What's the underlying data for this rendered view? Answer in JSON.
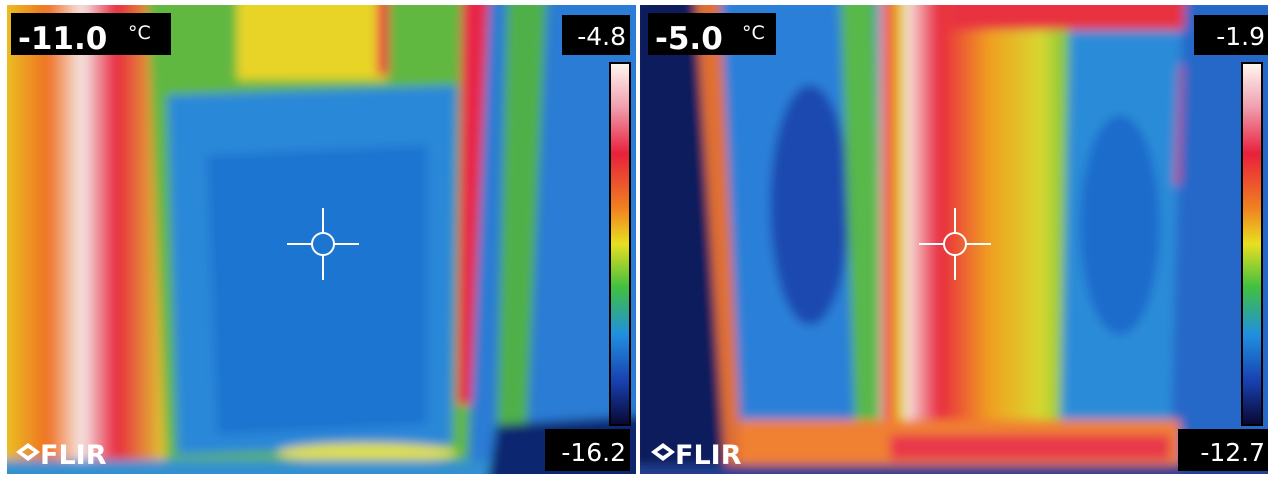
{
  "panels": [
    {
      "spot_temperature": "-11.0",
      "unit": "°C",
      "scale_max": "-4.8",
      "scale_min": "-16.2",
      "logo": "FLIR"
    },
    {
      "spot_temperature": "-5.0",
      "unit": "°C",
      "scale_max": "-1.9",
      "scale_min": "-12.7",
      "logo": "FLIR"
    }
  ]
}
